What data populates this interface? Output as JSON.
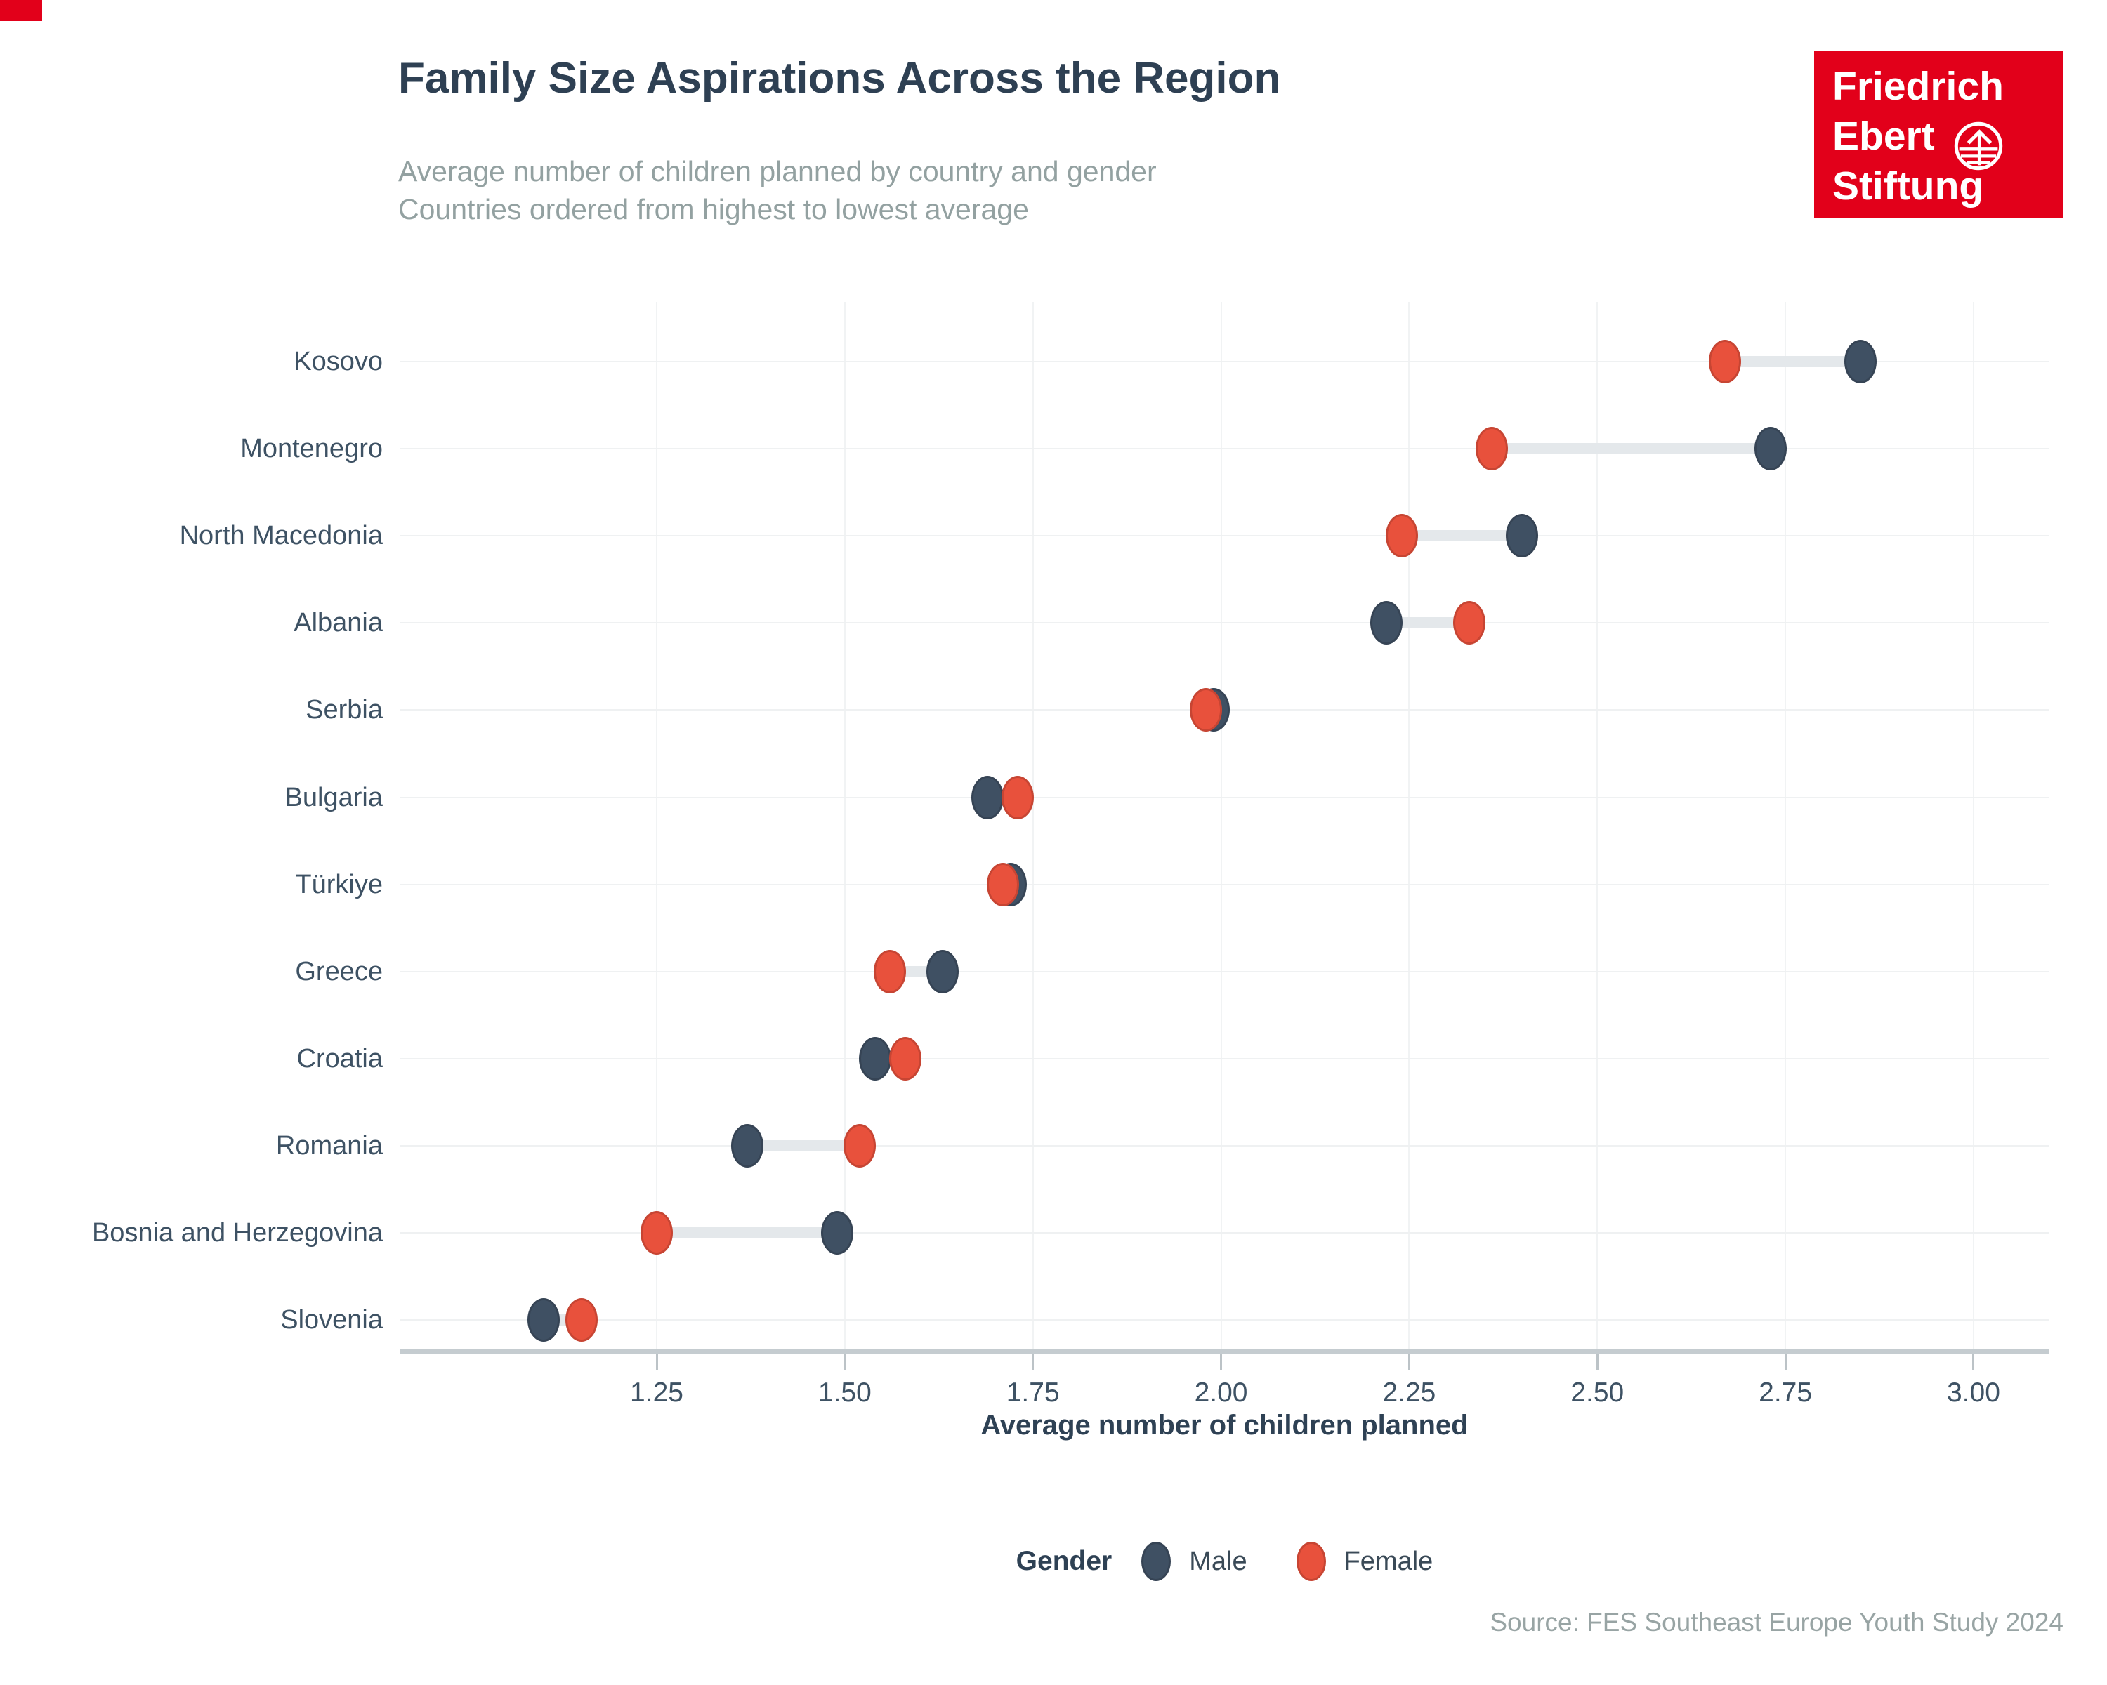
{
  "page": {
    "corner_mark_color": "#E2001A",
    "background": "#FFFFFF"
  },
  "header": {
    "title": "Family Size Aspirations Across the Region",
    "subtitle1": "Average number of children planned by country and gender",
    "subtitle2": "Countries ordered from highest to lowest average"
  },
  "logo": {
    "line1": "Friedrich",
    "line2": "Ebert",
    "line3": "Stiftung",
    "background": "#E2001A",
    "icon": "globe-arrow-icon"
  },
  "chart_data": {
    "type": "dumbbell",
    "title": "Family Size Aspirations Across the Region",
    "categories": [
      "Kosovo",
      "Montenegro",
      "North Macedonia",
      "Albania",
      "Serbia",
      "Bulgaria",
      "Türkiye",
      "Greece",
      "Croatia",
      "Romania",
      "Bosnia and Herzegovina",
      "Slovenia"
    ],
    "series": [
      {
        "name": "Male",
        "color": "#3F5063",
        "values": [
          2.85,
          2.73,
          2.4,
          2.22,
          1.99,
          1.69,
          1.72,
          1.63,
          1.54,
          1.37,
          1.49,
          1.1
        ]
      },
      {
        "name": "Female",
        "color": "#E8513C",
        "values": [
          2.67,
          2.36,
          2.24,
          2.33,
          1.98,
          1.73,
          1.71,
          1.56,
          1.58,
          1.52,
          1.25,
          1.15
        ]
      }
    ],
    "xlabel": "Average number of children planned",
    "x_ticks": [
      {
        "value": 1.25,
        "label": "1.25"
      },
      {
        "value": 1.5,
        "label": "1.50"
      },
      {
        "value": 1.75,
        "label": "1.75"
      },
      {
        "value": 2.0,
        "label": "2.00"
      },
      {
        "value": 2.25,
        "label": "2.25"
      },
      {
        "value": 2.5,
        "label": "2.50"
      },
      {
        "value": 3.0,
        "label": "3.00"
      },
      {
        "value": 2.75,
        "label": "2.75"
      }
    ],
    "xlim": [
      0.91,
      3.1
    ],
    "grid": true,
    "connector_color": "#E4E8EB",
    "legend": {
      "title": "Gender",
      "position": "bottom"
    }
  },
  "source": "Source: FES Southeast Europe Youth Study 2024"
}
